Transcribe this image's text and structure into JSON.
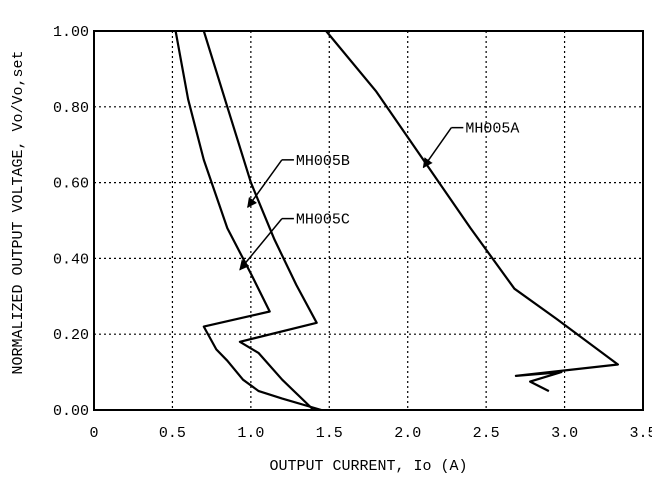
{
  "chart_data": {
    "type": "line",
    "xlabel": "OUTPUT CURRENT, Io (A)",
    "ylabel": "NORMALIZED OUTPUT VOLTAGE, Vo/Vo,set",
    "xlim": [
      0,
      3.5
    ],
    "ylim": [
      0,
      1.0
    ],
    "x_ticks": [
      "0",
      "0.5",
      "1.0",
      "1.5",
      "2.0",
      "2.5",
      "3.0",
      "3.5"
    ],
    "y_ticks": [
      "0.00",
      "0.20",
      "0.40",
      "0.60",
      "0.80",
      "1.00"
    ],
    "x_tick_values": [
      0,
      0.5,
      1.0,
      1.5,
      2.0,
      2.5,
      3.0,
      3.5
    ],
    "y_tick_values": [
      0,
      0.2,
      0.4,
      0.6,
      0.8,
      1.0
    ],
    "grid": true,
    "series": [
      {
        "name": "MH005A",
        "x": [
          1.48,
          1.8,
          2.1,
          2.4,
          2.68,
          2.95,
          3.34,
          2.69,
          2.98,
          2.78,
          2.9
        ],
        "y": [
          1.0,
          0.84,
          0.66,
          0.48,
          0.32,
          0.24,
          0.12,
          0.09,
          0.1,
          0.075,
          0.05
        ]
      },
      {
        "name": "MH005B",
        "x": [
          0.7,
          0.85,
          1.0,
          1.15,
          1.29,
          1.42,
          0.93,
          1.05,
          1.2,
          1.4
        ],
        "y": [
          1.0,
          0.8,
          0.6,
          0.45,
          0.33,
          0.23,
          0.18,
          0.15,
          0.08,
          0.0
        ]
      },
      {
        "name": "MH005C",
        "x": [
          0.52,
          0.6,
          0.7,
          0.85,
          1.0,
          1.12,
          0.7,
          0.78,
          0.85,
          0.95,
          1.05,
          1.2,
          1.45
        ],
        "y": [
          1.0,
          0.82,
          0.66,
          0.48,
          0.36,
          0.26,
          0.22,
          0.16,
          0.13,
          0.08,
          0.05,
          0.03,
          0.0
        ]
      }
    ],
    "annotations": [
      {
        "label": "MH005A",
        "series": "MH005A",
        "at": [
          2.1,
          0.64
        ],
        "text_pos": [
          2.38,
          0.745
        ]
      },
      {
        "label": "MH005B",
        "series": "MH005B",
        "at": [
          0.98,
          0.535
        ],
        "text_pos": [
          1.3,
          0.66
        ]
      },
      {
        "label": "MH005C",
        "series": "MH005C",
        "at": [
          0.93,
          0.37
        ],
        "text_pos": [
          1.3,
          0.505
        ]
      }
    ],
    "colors": {
      "line": "#000000",
      "grid": "#000000",
      "background": "#ffffff"
    }
  }
}
